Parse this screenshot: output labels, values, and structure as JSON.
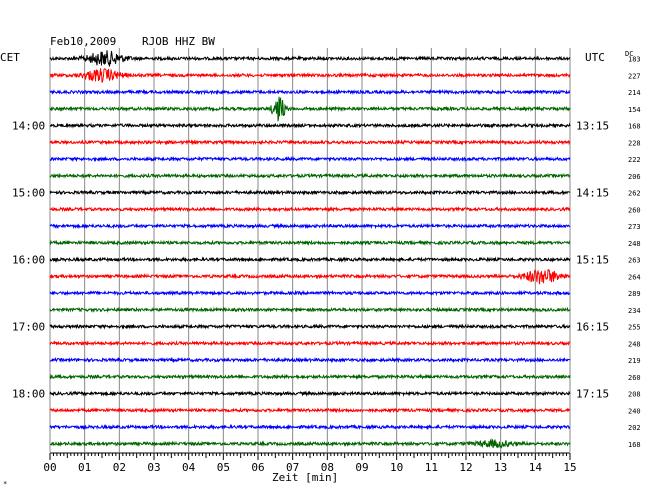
{
  "header": {
    "date": "Feb10,2009",
    "station": "RJOB HHZ BW",
    "left_zone": "CET",
    "right_zone": "UTC",
    "dc_label": "DC"
  },
  "footer": {
    "x_label": "Zeit [min]",
    "corner_mark": "*"
  },
  "colors": {
    "black": "#000000",
    "red": "#ff0000",
    "blue": "#0000ff",
    "green": "#006400",
    "grid": "#888888"
  },
  "chart_data": {
    "type": "line",
    "title": "Feb10,2009   RJOB HHZ BW",
    "xlabel": "Zeit [min]",
    "ylabel": "",
    "xlim": [
      0,
      15
    ],
    "x_ticks": [
      "00",
      "01",
      "02",
      "03",
      "04",
      "05",
      "06",
      "07",
      "08",
      "09",
      "10",
      "11",
      "12",
      "13",
      "14",
      "15"
    ],
    "left_time_labels": [
      {
        "row": 4,
        "label": "14:00"
      },
      {
        "row": 8,
        "label": "15:00"
      },
      {
        "row": 12,
        "label": "16:00"
      },
      {
        "row": 16,
        "label": "17:00"
      },
      {
        "row": 20,
        "label": "18:00"
      }
    ],
    "right_time_labels": [
      {
        "row": 4,
        "label": "13:15"
      },
      {
        "row": 8,
        "label": "14:15"
      },
      {
        "row": 12,
        "label": "15:15"
      },
      {
        "row": 16,
        "label": "16:15"
      },
      {
        "row": 20,
        "label": "17:15"
      }
    ],
    "dc_values": [
      183,
      227,
      214,
      154,
      168,
      228,
      222,
      206,
      262,
      260,
      273,
      248,
      263,
      264,
      289,
      234,
      255,
      248,
      219,
      260,
      208,
      240,
      202,
      168
    ],
    "trace_color_cycle": [
      "black",
      "red",
      "blue",
      "green"
    ],
    "events": [
      {
        "row": 0,
        "minute": 1.6,
        "amplitude": 7
      },
      {
        "row": 1,
        "minute": 1.5,
        "amplitude": 6
      },
      {
        "row": 3,
        "minute": 6.6,
        "amplitude": 13
      },
      {
        "row": 13,
        "minute": 14.2,
        "amplitude": 7
      },
      {
        "row": 23,
        "minute": 12.8,
        "amplitude": 3
      }
    ]
  }
}
